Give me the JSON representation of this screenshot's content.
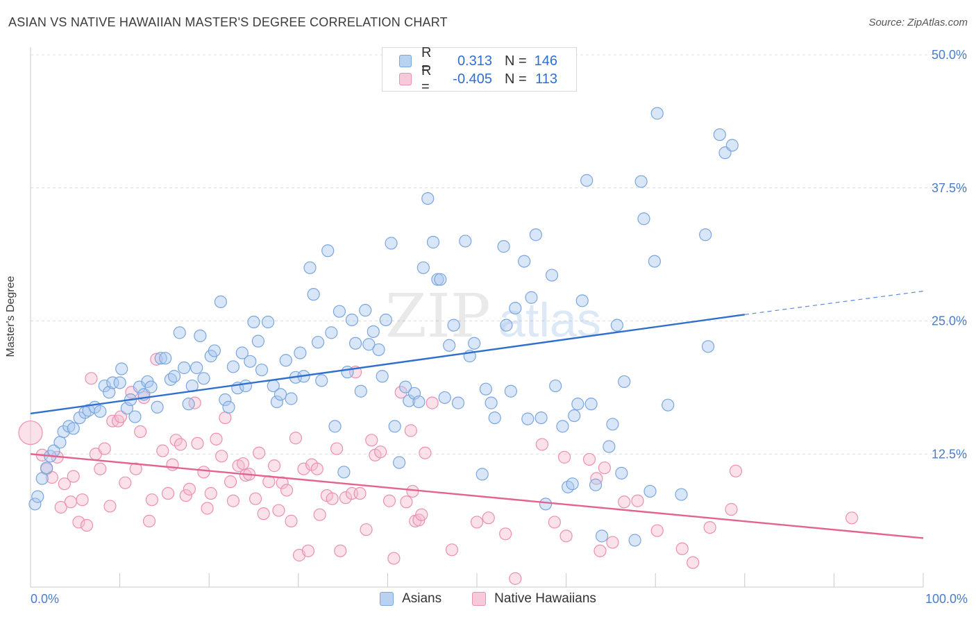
{
  "title": "ASIAN VS NATIVE HAWAIIAN MASTER'S DEGREE CORRELATION CHART",
  "source": "Source: ZipAtlas.com",
  "watermark": {
    "zip": "ZIP",
    "atlas": "atlas"
  },
  "legend": {
    "rows": [
      {
        "r_key": "R =",
        "r_val": "0.313",
        "n_key": "N =",
        "n_val": "146"
      },
      {
        "r_key": "R =",
        "r_val": "-0.405",
        "n_key": "N =",
        "n_val": "113"
      }
    ]
  },
  "bottom_legend": {
    "asians": "Asians",
    "hawaiians": "Native Hawaiians"
  },
  "colors": {
    "asian_fill": "#a9c8ef",
    "asian_stroke": "#7aa6dd",
    "asian_line": "#2f6fce",
    "hawaii_fill": "#f5bcd0",
    "hawaii_stroke": "#ec8fb0",
    "hawaii_line": "#e4628f",
    "tick_text": "#4a7cc7",
    "grid": "#dcdcdc"
  },
  "chart_data": {
    "type": "scatter",
    "title": "ASIAN VS NATIVE HAWAIIAN MASTER'S DEGREE CORRELATION CHART",
    "xlabel": "",
    "ylabel": "Master's Degree",
    "xlim": [
      0,
      100
    ],
    "ylim": [
      0,
      50
    ],
    "x_tick_labels": [
      "0.0%",
      "100.0%"
    ],
    "y_ticks": [
      12.5,
      25.0,
      37.5,
      50.0
    ],
    "y_tick_labels": [
      "12.5%",
      "25.0%",
      "37.5%",
      "50.0%"
    ],
    "series": [
      {
        "name": "Asians",
        "R": 0.313,
        "N": 146,
        "trend": {
          "x0": 0,
          "y0": 16.3,
          "x1": 80,
          "y1": 25.6,
          "dash_to_x": 100,
          "dash_to_y": 27.8
        },
        "points": [
          [
            0.5,
            7.8
          ],
          [
            0.8,
            8.5
          ],
          [
            1.3,
            10.2
          ],
          [
            1.8,
            11.2
          ],
          [
            2.2,
            12.3
          ],
          [
            2.6,
            12.8
          ],
          [
            3.3,
            13.6
          ],
          [
            3.7,
            14.6
          ],
          [
            4.3,
            15.1
          ],
          [
            4.8,
            14.9
          ],
          [
            5.5,
            15.9
          ],
          [
            6.1,
            16.4
          ],
          [
            6.5,
            16.6
          ],
          [
            7.2,
            16.9
          ],
          [
            7.8,
            16.5
          ],
          [
            8.3,
            18.9
          ],
          [
            8.8,
            18.3
          ],
          [
            9.2,
            19.2
          ],
          [
            10.0,
            19.2
          ],
          [
            10.2,
            20.5
          ],
          [
            10.8,
            16.8
          ],
          [
            11.2,
            17.6
          ],
          [
            11.7,
            16.0
          ],
          [
            12.2,
            18.8
          ],
          [
            12.7,
            18.1
          ],
          [
            13.1,
            19.3
          ],
          [
            13.5,
            18.8
          ],
          [
            14.2,
            16.9
          ],
          [
            14.6,
            21.5
          ],
          [
            15.1,
            21.5
          ],
          [
            15.7,
            19.5
          ],
          [
            16.1,
            19.8
          ],
          [
            16.7,
            23.9
          ],
          [
            17.2,
            20.6
          ],
          [
            17.7,
            17.2
          ],
          [
            18.1,
            18.9
          ],
          [
            18.6,
            20.6
          ],
          [
            19.0,
            23.6
          ],
          [
            19.4,
            19.6
          ],
          [
            20.2,
            21.7
          ],
          [
            20.6,
            22.2
          ],
          [
            21.3,
            26.8
          ],
          [
            21.8,
            17.6
          ],
          [
            22.2,
            16.9
          ],
          [
            22.7,
            20.7
          ],
          [
            23.2,
            18.7
          ],
          [
            23.7,
            22.0
          ],
          [
            24.1,
            18.9
          ],
          [
            24.6,
            21.2
          ],
          [
            25.0,
            24.9
          ],
          [
            25.5,
            23.1
          ],
          [
            25.9,
            20.4
          ],
          [
            26.6,
            24.9
          ],
          [
            27.2,
            18.9
          ],
          [
            27.6,
            17.4
          ],
          [
            28.0,
            18.1
          ],
          [
            28.6,
            21.3
          ],
          [
            29.2,
            17.7
          ],
          [
            29.7,
            19.7
          ],
          [
            30.2,
            22.0
          ],
          [
            30.6,
            19.8
          ],
          [
            31.3,
            30.0
          ],
          [
            31.7,
            27.5
          ],
          [
            32.2,
            23.0
          ],
          [
            32.6,
            19.4
          ],
          [
            33.3,
            31.6
          ],
          [
            33.7,
            23.9
          ],
          [
            34.1,
            15.1
          ],
          [
            34.6,
            25.9
          ],
          [
            35.1,
            10.8
          ],
          [
            35.5,
            20.2
          ],
          [
            36.0,
            25.1
          ],
          [
            36.4,
            22.9
          ],
          [
            37.0,
            18.4
          ],
          [
            37.5,
            26.0
          ],
          [
            37.9,
            22.8
          ],
          [
            38.4,
            24.0
          ],
          [
            39.0,
            22.3
          ],
          [
            39.4,
            19.8
          ],
          [
            39.8,
            25.1
          ],
          [
            40.4,
            32.3
          ],
          [
            40.8,
            15.1
          ],
          [
            41.3,
            11.7
          ],
          [
            42.0,
            18.8
          ],
          [
            42.4,
            17.5
          ],
          [
            43.0,
            18.2
          ],
          [
            43.5,
            17.4
          ],
          [
            44.0,
            30.0
          ],
          [
            44.5,
            36.5
          ],
          [
            45.1,
            32.4
          ],
          [
            45.6,
            28.9
          ],
          [
            45.9,
            28.9
          ],
          [
            46.4,
            17.8
          ],
          [
            46.9,
            22.7
          ],
          [
            47.4,
            24.6
          ],
          [
            47.9,
            17.3
          ],
          [
            48.7,
            32.5
          ],
          [
            49.2,
            21.7
          ],
          [
            49.7,
            22.9
          ],
          [
            50.6,
            10.6
          ],
          [
            51.0,
            18.6
          ],
          [
            51.6,
            17.3
          ],
          [
            52.0,
            15.9
          ],
          [
            53.0,
            32.0
          ],
          [
            53.3,
            24.6
          ],
          [
            53.8,
            18.4
          ],
          [
            54.3,
            26.2
          ],
          [
            55.3,
            30.6
          ],
          [
            55.7,
            15.8
          ],
          [
            56.1,
            27.2
          ],
          [
            56.6,
            33.1
          ],
          [
            57.2,
            15.9
          ],
          [
            57.7,
            7.8
          ],
          [
            58.4,
            29.3
          ],
          [
            58.8,
            18.9
          ],
          [
            59.6,
            15.1
          ],
          [
            60.2,
            9.4
          ],
          [
            60.7,
            9.7
          ],
          [
            60.9,
            16.1
          ],
          [
            61.3,
            17.2
          ],
          [
            61.8,
            26.9
          ],
          [
            62.3,
            38.2
          ],
          [
            62.8,
            17.2
          ],
          [
            63.3,
            9.6
          ],
          [
            64.0,
            4.8
          ],
          [
            64.8,
            13.2
          ],
          [
            65.2,
            15.3
          ],
          [
            65.7,
            24.6
          ],
          [
            66.2,
            10.7
          ],
          [
            66.5,
            19.3
          ],
          [
            67.7,
            4.4
          ],
          [
            68.4,
            38.1
          ],
          [
            68.7,
            34.6
          ],
          [
            69.4,
            9.0
          ],
          [
            70.2,
            44.5
          ],
          [
            69.9,
            30.6
          ],
          [
            71.4,
            17.1
          ],
          [
            72.9,
            8.7
          ],
          [
            75.6,
            33.1
          ],
          [
            75.9,
            22.6
          ],
          [
            77.2,
            42.5
          ],
          [
            77.8,
            40.8
          ],
          [
            78.6,
            41.5
          ]
        ]
      },
      {
        "name": "Native Hawaiians",
        "R": -0.405,
        "N": 113,
        "trend": {
          "x0": 0,
          "y0": 12.5,
          "x1": 100,
          "y1": 4.6
        },
        "points": [
          [
            0.0,
            14.5
          ],
          [
            1.3,
            12.4
          ],
          [
            1.8,
            11.1
          ],
          [
            2.4,
            10.3
          ],
          [
            3.0,
            12.2
          ],
          [
            3.4,
            7.5
          ],
          [
            3.8,
            9.7
          ],
          [
            4.5,
            8.0
          ],
          [
            4.8,
            10.4
          ],
          [
            5.4,
            6.1
          ],
          [
            5.8,
            8.2
          ],
          [
            6.3,
            5.8
          ],
          [
            6.8,
            19.6
          ],
          [
            7.3,
            12.5
          ],
          [
            7.8,
            11.1
          ],
          [
            8.3,
            13.0
          ],
          [
            8.9,
            7.6
          ],
          [
            9.2,
            15.6
          ],
          [
            9.8,
            15.6
          ],
          [
            10.1,
            16.0
          ],
          [
            10.6,
            9.8
          ],
          [
            11.3,
            18.3
          ],
          [
            11.8,
            11.1
          ],
          [
            12.3,
            14.6
          ],
          [
            12.7,
            17.8
          ],
          [
            13.3,
            6.2
          ],
          [
            13.6,
            8.2
          ],
          [
            14.1,
            21.4
          ],
          [
            14.8,
            12.8
          ],
          [
            15.4,
            8.8
          ],
          [
            15.9,
            11.5
          ],
          [
            16.3,
            13.8
          ],
          [
            16.8,
            13.4
          ],
          [
            17.4,
            8.6
          ],
          [
            17.8,
            9.2
          ],
          [
            18.4,
            17.3
          ],
          [
            18.7,
            13.5
          ],
          [
            19.4,
            10.8
          ],
          [
            19.8,
            7.4
          ],
          [
            20.2,
            8.8
          ],
          [
            20.8,
            13.9
          ],
          [
            21.4,
            12.3
          ],
          [
            21.8,
            15.9
          ],
          [
            22.4,
            9.9
          ],
          [
            22.7,
            8.1
          ],
          [
            23.3,
            11.4
          ],
          [
            23.8,
            11.6
          ],
          [
            24.1,
            10.5
          ],
          [
            24.5,
            10.6
          ],
          [
            25.2,
            8.3
          ],
          [
            25.6,
            12.6
          ],
          [
            26.1,
            6.9
          ],
          [
            26.7,
            9.9
          ],
          [
            27.3,
            11.4
          ],
          [
            27.8,
            7.2
          ],
          [
            28.2,
            9.8
          ],
          [
            28.7,
            9.1
          ],
          [
            29.2,
            6.2
          ],
          [
            29.7,
            14.0
          ],
          [
            30.1,
            3.0
          ],
          [
            30.6,
            11.1
          ],
          [
            31.1,
            3.4
          ],
          [
            31.5,
            11.5
          ],
          [
            32.1,
            11.1
          ],
          [
            32.4,
            6.8
          ],
          [
            33.2,
            8.6
          ],
          [
            33.8,
            8.3
          ],
          [
            34.3,
            13.0
          ],
          [
            34.7,
            3.4
          ],
          [
            35.3,
            8.4
          ],
          [
            36.0,
            8.8
          ],
          [
            36.4,
            20.2
          ],
          [
            36.9,
            8.8
          ],
          [
            37.6,
            5.4
          ],
          [
            38.2,
            13.8
          ],
          [
            38.6,
            12.4
          ],
          [
            39.2,
            12.7
          ],
          [
            40.2,
            8.1
          ],
          [
            40.7,
            2.7
          ],
          [
            41.5,
            18.3
          ],
          [
            42.1,
            8.0
          ],
          [
            42.6,
            14.7
          ],
          [
            42.8,
            9.0
          ],
          [
            43.1,
            6.2
          ],
          [
            43.5,
            6.3
          ],
          [
            43.8,
            6.8
          ],
          [
            44.2,
            12.6
          ],
          [
            45.0,
            17.3
          ],
          [
            47.2,
            3.5
          ],
          [
            50.0,
            6.1
          ],
          [
            51.3,
            6.5
          ],
          [
            53.2,
            5.0
          ],
          [
            54.3,
            0.8
          ],
          [
            57.3,
            13.4
          ],
          [
            58.7,
            6.1
          ],
          [
            59.8,
            12.2
          ],
          [
            60.0,
            4.8
          ],
          [
            62.6,
            12.0
          ],
          [
            63.4,
            10.2
          ],
          [
            63.8,
            3.4
          ],
          [
            64.3,
            11.2
          ],
          [
            65.2,
            4.2
          ],
          [
            66.5,
            8.0
          ],
          [
            68.0,
            8.1
          ],
          [
            70.2,
            5.3
          ],
          [
            73.0,
            3.6
          ],
          [
            74.2,
            2.3
          ],
          [
            76.1,
            5.6
          ],
          [
            78.5,
            7.3
          ],
          [
            79.0,
            10.9
          ],
          [
            92.0,
            6.5
          ]
        ]
      }
    ]
  }
}
